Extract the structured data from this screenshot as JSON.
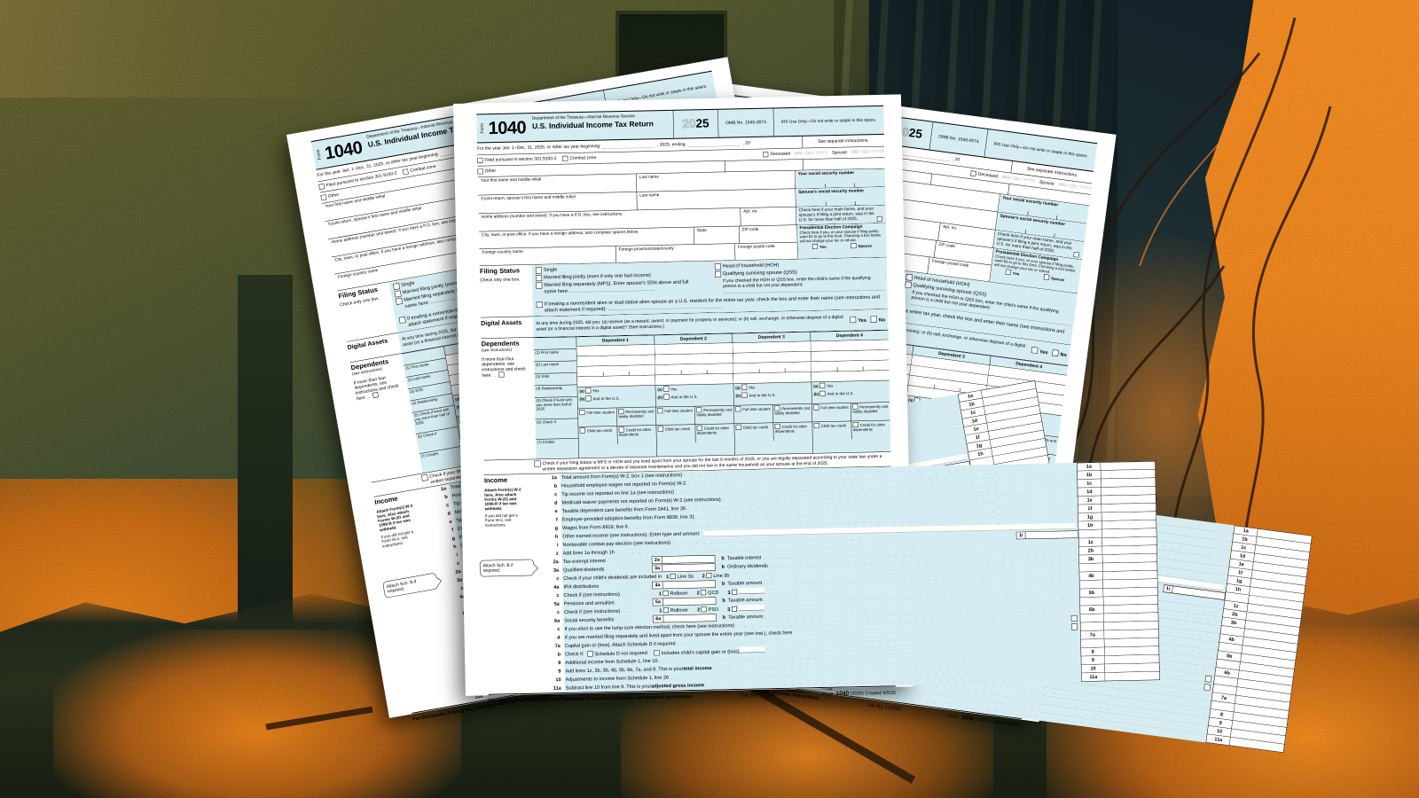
{
  "background": {
    "orange": "#e2761b",
    "deep_orange": "#b85c12",
    "olive": "#57542a",
    "dark_teal": "#131f22",
    "rubble_dark": "#1d2418"
  },
  "form": {
    "form_word": "Form",
    "form_number": "1040",
    "dept": "Department of the Treasury—Internal Revenue Service",
    "title": "U.S. Individual Income Tax Return",
    "year_light": "20",
    "year_bold": "25",
    "omb": "OMB No. 1545-0074",
    "irs_use": "IRS Use Only—Do not write or staple in this space.",
    "year_row": {
      "a": "For the year Jan. 1–Dec. 31, 2025, or other tax year beginning",
      "b": ", 2025, ending",
      "c": ", 20",
      "see": "See separate instructions."
    },
    "filed_row": {
      "filed": "Filed pursuant to section 301.9100-2",
      "combat": "Combat zone",
      "deceased": "Deceased",
      "date_ghost": "MM  /  DD  /  YYYY",
      "spouse": "Spouse"
    },
    "other_label": "Other",
    "names": {
      "your_first": "Your first name and middle initial",
      "last": "Last name",
      "your_ssn": "Your social security number",
      "spouse_first": "If joint return, spouse’s first name and middle initial",
      "spouse_ssn": "Spouse’s social security number"
    },
    "address": {
      "home": "Home address (number and street). If you have a P.O. box, see instructions.",
      "apt": "Apt. no.",
      "main_home_check": "Check here if your main home, and your spouse’s if filing a joint return, was in the U.S. for more than half of 2025.",
      "city": "City, town, or post office. If you have a foreign address, also complete spaces below.",
      "state": "State",
      "zip": "ZIP code",
      "pec_title": "Presidential Election Campaign",
      "pec_text": "Check here if you, or your spouse if filing jointly, want $3 to go to this fund. Checking a box below will not change your tax or refund.",
      "pec_you": "You",
      "pec_spouse": "Spouse",
      "foreign_country": "Foreign country name",
      "foreign_province": "Foreign province/state/county",
      "foreign_postal": "Foreign postal code"
    },
    "filing_status": {
      "label": "Filing Status",
      "note": "Check only one box.",
      "single": "Single",
      "mfj": "Married filing jointly (even if only one had income)",
      "mfs": "Married filing separately (MFS). Enter spouse’s SSN above and full name here:",
      "hoh": "Head of household (HOH)",
      "qss": "Qualifying surviving spouse (QSS)",
      "qss_note": "If you checked the HOH or QSS box, enter the child’s name if the qualifying person is a child but not your dependent:",
      "nra": "If treating a nonresident alien or dual-status alien spouse as a U.S. resident for the entire tax year, check the box and enter their name (see instructions and attach statement if required):"
    },
    "digital_assets": {
      "label": "Digital Assets",
      "text": "At any time during 2025, did you: (a) receive (as a reward, award, or payment for property or services); or (b) sell, exchange, or otherwise dispose of a digital asset (or a financial interest in a digital asset)? (See instructions.)",
      "yes": "Yes",
      "no": "No"
    },
    "dependents": {
      "label": "Dependents",
      "see": "(see instructions)",
      "more": "If more than four dependents, see instructions and check here  .  .",
      "cols": [
        "Dependent 1",
        "Dependent 2",
        "Dependent 3",
        "Dependent 4"
      ],
      "r1": "(1) First name",
      "r2": "(2) Last name",
      "r3": "(3) SSN",
      "r4": "(4) Relationship",
      "r5": "(5) Check if lived with you more than half of 2025",
      "r5a": "Yes",
      "r5b": "And in the U.S.",
      "r6": "(6) Check if",
      "r6a": "Full-time student",
      "r6b": "Permanently and totally disabled",
      "r7": "(7) Credits",
      "r7a": "Child tax credit",
      "r7b": "Credit for other dependents"
    },
    "mfs_para": "Check if your filing status is MFS or HOH and you lived apart from your spouse for the last 6 months of 2025, or you are legally separated according to your state law under a written separation agreement or a decree of separate maintenance and you did not live in the same household as your spouse at the end of 2025.",
    "income_side": {
      "label": "Income",
      "attach1": "Attach Form(s) W-2 here. Also attach Forms W-2G and 1099-R if tax was withheld.",
      "attach2": "If you did not get a Form W-2, see instructions.",
      "schb": "Attach Sch. B if required."
    },
    "income_lines": [
      {
        "t": "s",
        "n": "1a",
        "label": "Total amount from Form(s) W-2, box 1 (see instructions)",
        "box": "1a"
      },
      {
        "t": "s",
        "n": "b",
        "label": "Household employee wages not reported on Form(s) W-2",
        "box": "1b"
      },
      {
        "t": "s",
        "n": "c",
        "label": "Tip income not reported on line 1a (see instructions)",
        "box": "1c"
      },
      {
        "t": "s",
        "n": "d",
        "label": "Medicaid waiver payments not reported on Form(s) W-2 (see instructions)",
        "box": "1d"
      },
      {
        "t": "s",
        "n": "e",
        "label": "Taxable dependent care benefits from Form 2441, line 26",
        "box": "1e"
      },
      {
        "t": "s",
        "n": "f",
        "label": "Employer-provided adoption benefits from Form 8839, line 31",
        "box": "1f"
      },
      {
        "t": "s",
        "n": "g",
        "label": "Wages from Form 8919, line 6",
        "box": "1g"
      },
      {
        "t": "blank",
        "n": "h",
        "label": "Other earned income (see instructions). Enter type and amount:",
        "box": "1h"
      },
      {
        "t": "inner",
        "n": "i",
        "label": "Nontaxable combat pay election (see instructions)",
        "inner": "1i"
      },
      {
        "t": "s",
        "n": "z",
        "label": "Add lines 1a through 1h",
        "box": "1z"
      },
      {
        "t": "split",
        "n": "2a",
        "label": "Tax-exempt interest",
        "inner": "2a",
        "bn": "b",
        "blabel": "Taxable interest",
        "box": "2b"
      },
      {
        "t": "split",
        "n": "3a",
        "label": "Qualified dividends",
        "inner": "3a",
        "bn": "b",
        "blabel": "Ordinary dividends",
        "box": "3b"
      },
      {
        "t": "c3",
        "n": "c",
        "label": "Check if your child’s dividends are included in",
        "items": [
          {
            "pre": "1",
            "lab": "Line 3a"
          },
          {
            "pre": "2",
            "lab": "Line 3b"
          }
        ]
      },
      {
        "t": "split",
        "n": "4a",
        "label": "IRA distributions",
        "inner": "4a",
        "bn": "b",
        "blabel": "Taxable amount",
        "box": "4b"
      },
      {
        "t": "c3",
        "n": "c",
        "label": "Check if (see instructions)",
        "dots": true,
        "items": [
          {
            "pre": "1",
            "lab": "Rollover"
          },
          {
            "pre": "2",
            "lab": "QCD"
          },
          {
            "pre": "3",
            "lab": "",
            "blank": true
          }
        ]
      },
      {
        "t": "split",
        "n": "5a",
        "label": "Pensions and annuities",
        "inner": "5a",
        "bn": "b",
        "blabel": "Taxable amount",
        "box": "5b"
      },
      {
        "t": "c3",
        "n": "c",
        "label": "Check if (see instructions)",
        "dots": true,
        "items": [
          {
            "pre": "1",
            "lab": "Rollover"
          },
          {
            "pre": "2",
            "lab": "PSO"
          },
          {
            "pre": "3",
            "lab": "",
            "blank": true
          }
        ]
      },
      {
        "t": "split",
        "n": "6a",
        "label": "Social security benefits",
        "inner": "6a",
        "bn": "b",
        "blabel": "Taxable amount",
        "box": "6b"
      },
      {
        "t": "endcb",
        "n": "c",
        "label": "If you elect to use the lump-sum election method, check here (see instructions)"
      },
      {
        "t": "endcb",
        "n": "d",
        "label": "If you are married filing separately and lived apart from your spouse the entire year (see inst.), check here",
        "nodots": true
      },
      {
        "t": "s",
        "n": "7a",
        "label": "Capital gain or (loss). Attach Schedule D if required",
        "box": "7a"
      },
      {
        "t": "cbpair",
        "n": "b",
        "label": "Check if:",
        "items": [
          {
            "lab": "Schedule D not required"
          },
          {
            "lab": "Includes child’s capital gain or (loss)",
            "blank": true
          }
        ]
      },
      {
        "t": "s",
        "n": "8",
        "label": "Additional income from Schedule 1, line 10",
        "box": "8"
      },
      {
        "t": "sb",
        "n": "9",
        "label": "Add lines 1z, 2b, 3b, 4b, 5b, 6b, 7a, and 8. This is your ",
        "bold": "total income",
        "box": "9"
      },
      {
        "t": "s",
        "n": "10",
        "label": "Adjustments to income from Schedule 1, line 26",
        "box": "10"
      },
      {
        "t": "sb",
        "n": "11a",
        "label": "Subtract line 10 from line 9. This is your ",
        "bold": "adjusted gross income",
        "box": "11a"
      }
    ],
    "footer": {
      "left": "For Disclosure, Privacy Act, and Paperwork Reduction Act Notice, see separate instructions.",
      "cat": "Cat. No. 11320B",
      "right_pre": "Form",
      "right_num": "1040",
      "right_post": "(2025) Created 9/5/25"
    }
  }
}
